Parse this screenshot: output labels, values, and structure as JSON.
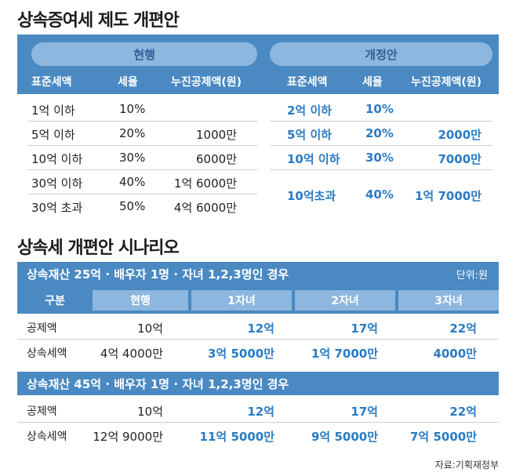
{
  "title1": "상속증여세 제도 개편안",
  "table1": {
    "group_current": "현행",
    "group_new": "개정안",
    "headers_current": [
      "표준세액",
      "세율",
      "누진공제액(원)"
    ],
    "headers_new": [
      "표준세액",
      "세율",
      "누진공제액(원)"
    ],
    "rows_current": [
      {
        "base": "1억 이하",
        "rate": "10%",
        "deduction": ""
      },
      {
        "base": "5억 이하",
        "rate": "20%",
        "deduction": "1000만"
      },
      {
        "base": "10억 이하",
        "rate": "30%",
        "deduction": "6000만"
      },
      {
        "base": "30억 이하",
        "rate": "40%",
        "deduction": "1억 6000만"
      },
      {
        "base": "30억 초과",
        "rate": "50%",
        "deduction": "4억 6000만"
      }
    ],
    "rows_new": [
      {
        "base": "2억 이하",
        "rate": "10%",
        "deduction": ""
      },
      {
        "base": "5억 이하",
        "rate": "20%",
        "deduction": "2000만"
      },
      {
        "base": "10억 이하",
        "rate": "30%",
        "deduction": "7000만"
      },
      {
        "base": "10억초과",
        "rate": "40%",
        "deduction": "1억 7000만"
      }
    ]
  },
  "title2": "상속세 개편안 시나리오",
  "scenario": {
    "unit": "단위:원",
    "case1_title": "상속재산 25억 ·  배우자 1명 · 자녀 1,2,3명인 경우",
    "case2_title": "상속재산 45억 ·  배우자 1명 · 자녀 1,2,3명인 경우",
    "headers": [
      "구분",
      "현행",
      "1자녀",
      "2자녀",
      "3자녀"
    ],
    "case1_rows": [
      {
        "label": "공제액",
        "current": "10억",
        "c1": "12억",
        "c2": "17억",
        "c3": "22억"
      },
      {
        "label": "상속세액",
        "current": "4억 4000만",
        "c1": "3억 5000만",
        "c2": "1억 7000만",
        "c3": "4000만"
      }
    ],
    "case2_rows": [
      {
        "label": "공제액",
        "current": "10억",
        "c1": "12억",
        "c2": "17억",
        "c3": "22억"
      },
      {
        "label": "상속세액",
        "current": "12억 9000만",
        "c1": "11억 5000만",
        "c2": "9억 5000만",
        "c3": "7억 5000만"
      }
    ]
  },
  "source": "자료:기획재정부"
}
